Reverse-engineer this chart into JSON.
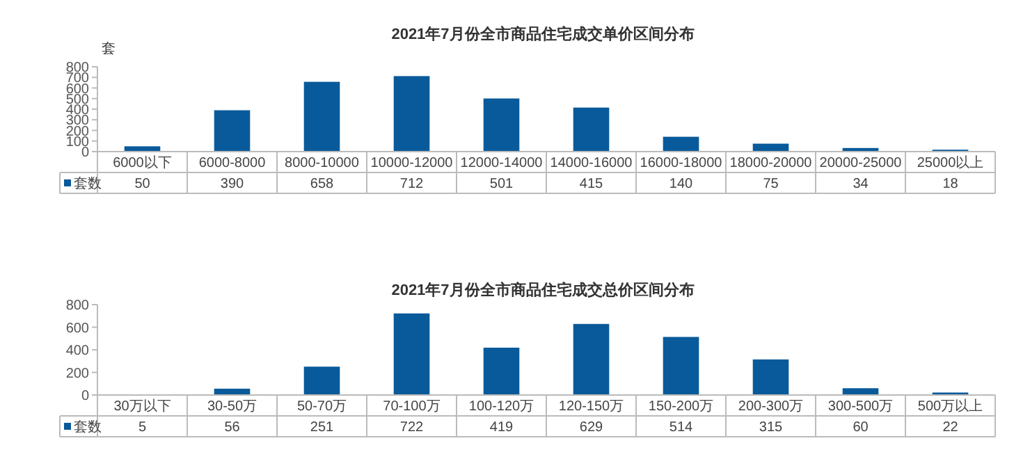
{
  "chart_data": [
    {
      "type": "bar",
      "title": "2021年7月份全市商品住宅成交单价区间分布",
      "ylabel": "套",
      "categories": [
        "6000以下",
        "6000-8000",
        "8000-10000",
        "10000-12000",
        "12000-14000",
        "14000-16000",
        "16000-18000",
        "18000-20000",
        "20000-25000",
        "25000以上"
      ],
      "series": [
        {
          "name": "套数",
          "color": "#095a9a",
          "values": [
            50,
            390,
            658,
            712,
            501,
            415,
            140,
            75,
            34,
            18
          ]
        }
      ],
      "ylim": [
        0,
        800
      ],
      "yticks": [
        0,
        100,
        200,
        300,
        400,
        500,
        600,
        700,
        800
      ],
      "data_labels": true
    },
    {
      "type": "bar",
      "title": "2021年7月份全市商品住宅成交总价区间分布",
      "categories": [
        "30万以下",
        "30-50万",
        "50-70万",
        "70-100万",
        "100-120万",
        "120-150万",
        "150-200万",
        "200-300万",
        "300-500万",
        "500万以上"
      ],
      "series": [
        {
          "name": "套数",
          "color": "#095a9a",
          "values": [
            5,
            56,
            251,
            722,
            419,
            629,
            514,
            315,
            60,
            22
          ]
        }
      ],
      "ylim": [
        0,
        800
      ],
      "yticks": [
        0,
        200,
        400,
        600,
        800
      ],
      "data_labels": true
    }
  ]
}
